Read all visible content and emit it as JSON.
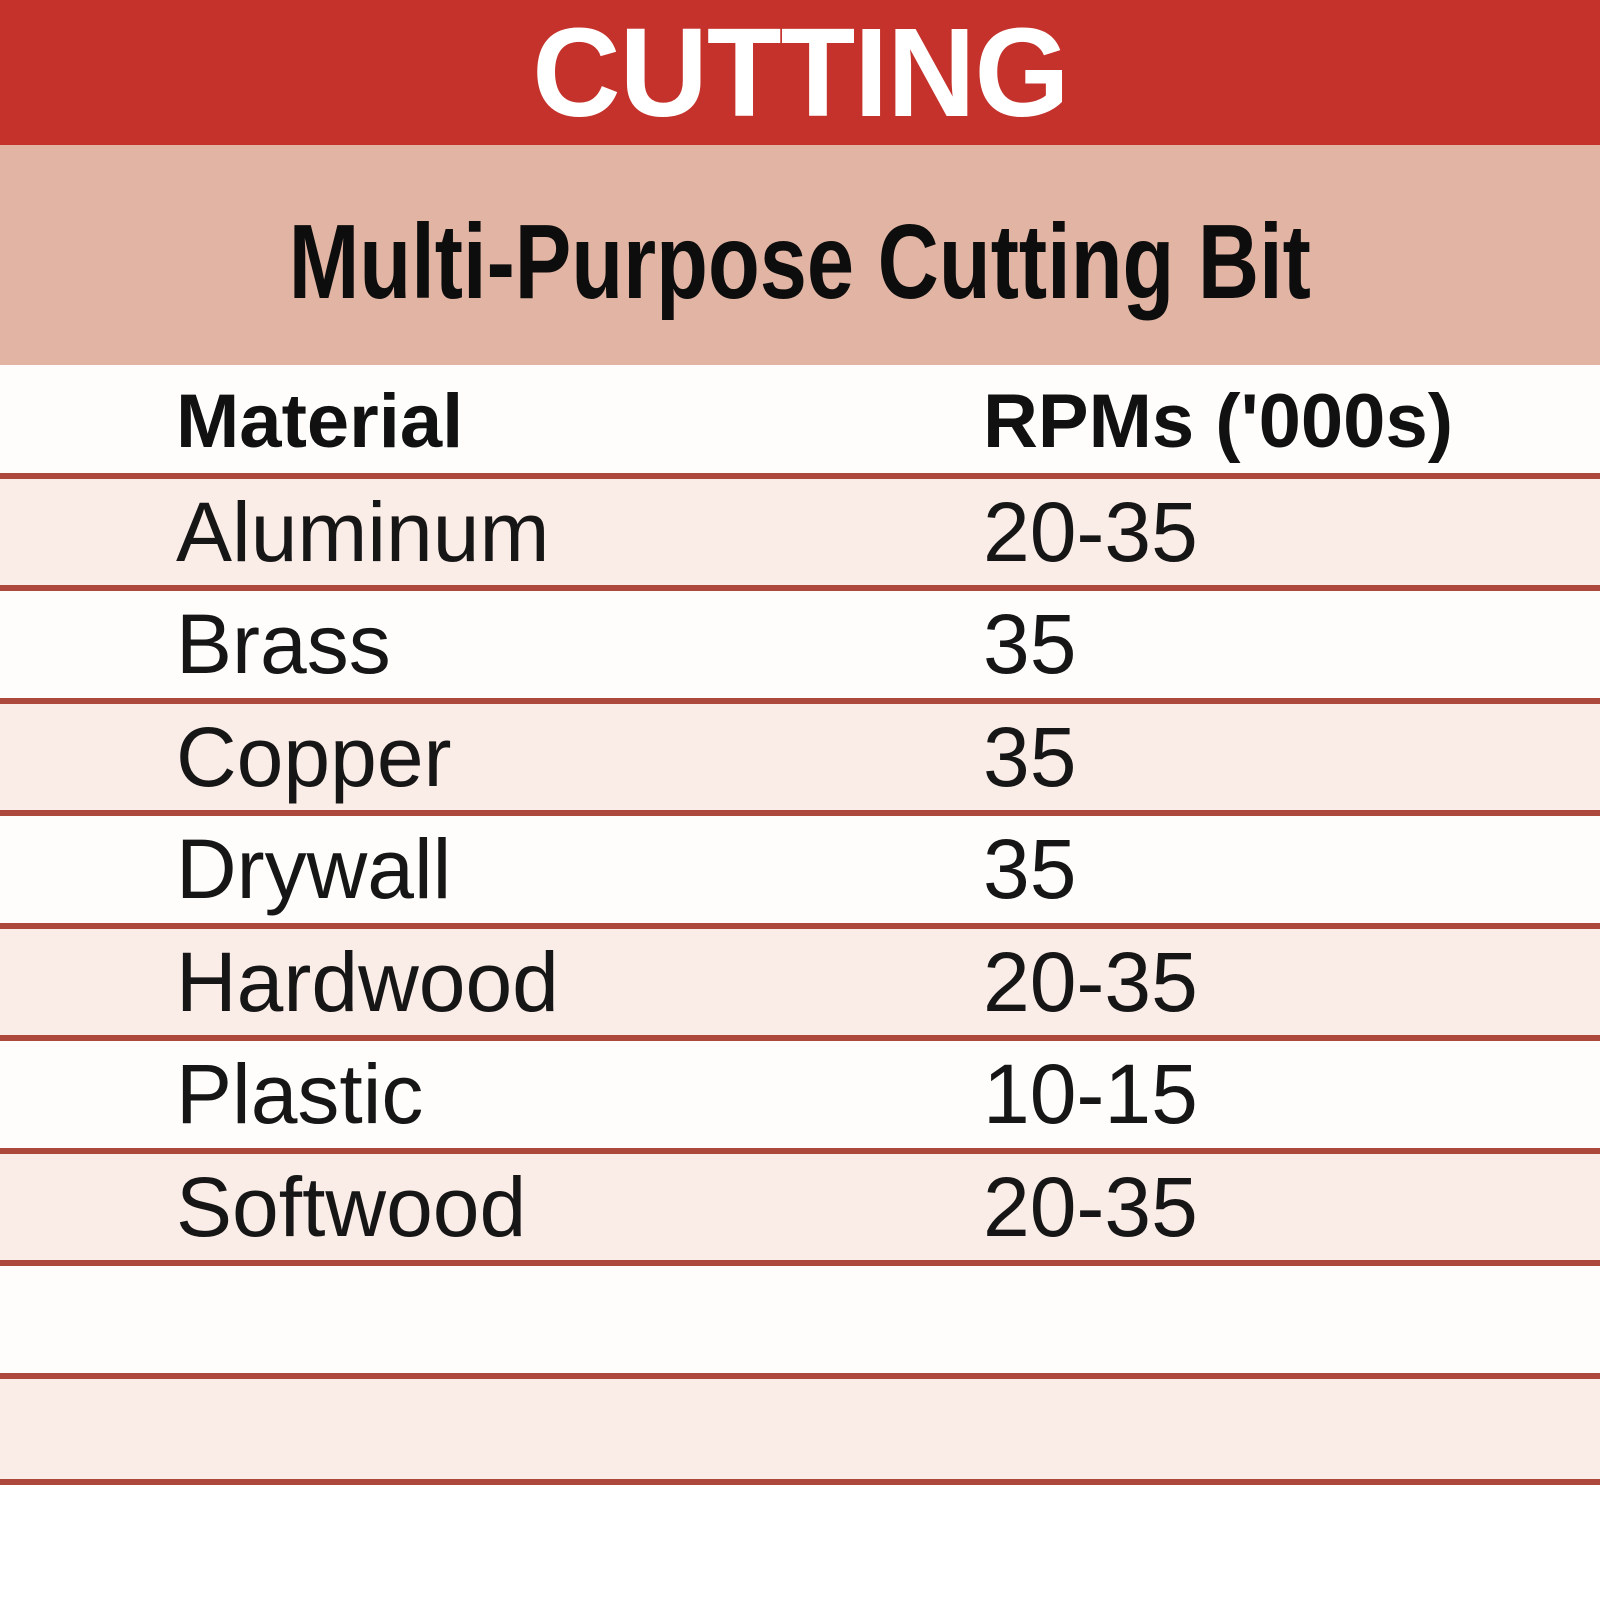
{
  "header": {
    "title": "CUTTING"
  },
  "subheader": {
    "title": "Multi-Purpose Cutting Bit"
  },
  "table": {
    "columns": [
      "Material",
      "RPMs ('000s)"
    ],
    "rows": [
      {
        "material": "Aluminum",
        "rpms": "20-35"
      },
      {
        "material": "Brass",
        "rpms": "35"
      },
      {
        "material": "Copper",
        "rpms": "35"
      },
      {
        "material": "Drywall",
        "rpms": "35"
      },
      {
        "material": "Hardwood",
        "rpms": "20-35"
      },
      {
        "material": "Plastic",
        "rpms": "10-15"
      },
      {
        "material": "Softwood",
        "rpms": "20-35"
      },
      {
        "material": "",
        "rpms": ""
      },
      {
        "material": "",
        "rpms": ""
      }
    ]
  },
  "colors": {
    "header_red": "#c5322c",
    "band_pink": "#e1b4a3",
    "row_pink": "#faece7",
    "row_white": "#fffdfc",
    "rule_red": "#ad483c",
    "title_text": "#ffffff",
    "body_text": "#161616"
  },
  "chart_data": {
    "type": "table",
    "title": "CUTTING",
    "subtitle": "Multi-Purpose Cutting Bit",
    "columns": [
      "Material",
      "RPMs ('000s)"
    ],
    "rows": [
      [
        "Aluminum",
        "20-35"
      ],
      [
        "Brass",
        "35"
      ],
      [
        "Copper",
        "35"
      ],
      [
        "Drywall",
        "35"
      ],
      [
        "Hardwood",
        "20-35"
      ],
      [
        "Plastic",
        "10-15"
      ],
      [
        "Softwood",
        "20-35"
      ]
    ],
    "layout": {
      "row_striping": "alternating pink/white starting pink",
      "separators": "horizontal brick-red rules between all rows",
      "trailing_empty_rows": 2
    }
  }
}
